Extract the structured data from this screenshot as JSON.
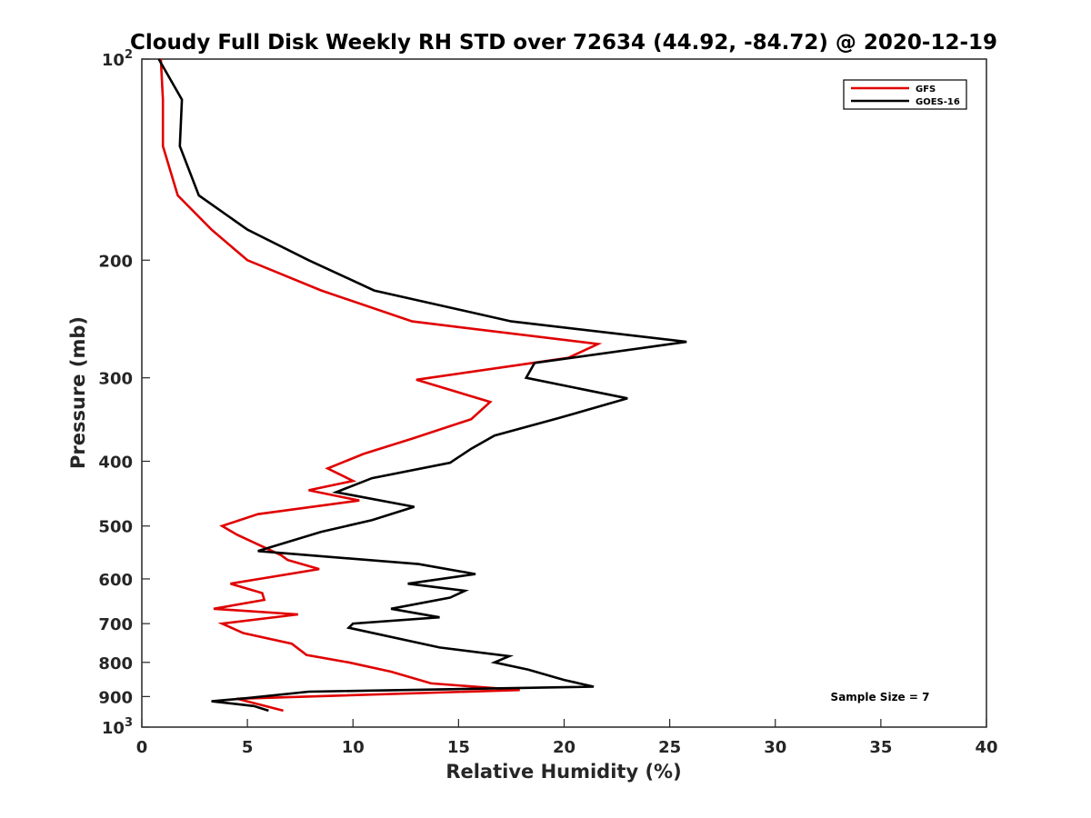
{
  "chart_data": {
    "type": "line",
    "title": "Cloudy Full Disk Weekly RH STD over 72634 (44.92, -84.72) @ 2020-12-19",
    "xlabel": "Relative Humidity (%)",
    "ylabel": "Pressure (mb)",
    "xlim": [
      0,
      40
    ],
    "ylim": [
      100,
      1000
    ],
    "y_scale": "log",
    "y_reversed": true,
    "grid": false,
    "legend_position": "top-right",
    "x_ticks": [
      "0",
      "5",
      "10",
      "15",
      "20",
      "25",
      "30",
      "35",
      "40"
    ],
    "y_ticks": [
      {
        "value": 100,
        "base": "10",
        "exp": "2"
      },
      {
        "value": 200,
        "label": "200"
      },
      {
        "value": 300,
        "label": "300"
      },
      {
        "value": 400,
        "label": "400"
      },
      {
        "value": 500,
        "label": "500"
      },
      {
        "value": 600,
        "label": "600"
      },
      {
        "value": 700,
        "label": "700"
      },
      {
        "value": 800,
        "label": "800"
      },
      {
        "value": 900,
        "label": "900"
      },
      {
        "value": 1000,
        "base": "10",
        "exp": "3"
      }
    ],
    "annotation": "Sample Size = 7",
    "series": [
      {
        "name": "GFS",
        "color": "#e00000",
        "points": [
          [
            0.9,
            100
          ],
          [
            1.0,
            115
          ],
          [
            1.0,
            135
          ],
          [
            1.7,
            160
          ],
          [
            3.3,
            180
          ],
          [
            5.0,
            200
          ],
          [
            8.5,
            222
          ],
          [
            12.8,
            247
          ],
          [
            21.6,
            267
          ],
          [
            20.2,
            280
          ],
          [
            13.0,
            302
          ],
          [
            16.5,
            326
          ],
          [
            15.6,
            346
          ],
          [
            12.8,
            370
          ],
          [
            10.5,
            390
          ],
          [
            8.8,
            410
          ],
          [
            10.0,
            428
          ],
          [
            7.9,
            442
          ],
          [
            10.3,
            458
          ],
          [
            5.5,
            480
          ],
          [
            3.8,
            500
          ],
          [
            4.5,
            515
          ],
          [
            6.6,
            553
          ],
          [
            6.9,
            562
          ],
          [
            8.4,
            580
          ],
          [
            4.2,
            610
          ],
          [
            5.7,
            630
          ],
          [
            5.8,
            645
          ],
          [
            3.4,
            665
          ],
          [
            7.4,
            678
          ],
          [
            3.8,
            700
          ],
          [
            4.8,
            723
          ],
          [
            7.1,
            750
          ],
          [
            7.8,
            780
          ],
          [
            9.8,
            800
          ],
          [
            11.8,
            826
          ],
          [
            13.7,
            860
          ],
          [
            17.9,
            880
          ],
          [
            4.5,
            907
          ],
          [
            6.7,
            945
          ]
        ]
      },
      {
        "name": "GOES-16",
        "color": "#000000",
        "points": [
          [
            0.8,
            100
          ],
          [
            1.9,
            115
          ],
          [
            1.8,
            135
          ],
          [
            2.7,
            160
          ],
          [
            5.0,
            180
          ],
          [
            7.9,
            200
          ],
          [
            11.0,
            222
          ],
          [
            17.5,
            247
          ],
          [
            25.8,
            265
          ],
          [
            18.6,
            285
          ],
          [
            18.2,
            300
          ],
          [
            23.0,
            322
          ],
          [
            19.7,
            345
          ],
          [
            16.7,
            366
          ],
          [
            15.6,
            383
          ],
          [
            14.6,
            402
          ],
          [
            10.9,
            424
          ],
          [
            9.2,
            445
          ],
          [
            12.9,
            468
          ],
          [
            10.9,
            490
          ],
          [
            8.5,
            510
          ],
          [
            5.5,
            545
          ],
          [
            13.1,
            570
          ],
          [
            15.8,
            590
          ],
          [
            12.6,
            610
          ],
          [
            15.3,
            625
          ],
          [
            14.6,
            640
          ],
          [
            11.8,
            665
          ],
          [
            14.1,
            685
          ],
          [
            10.0,
            700
          ],
          [
            9.8,
            710
          ],
          [
            14.1,
            760
          ],
          [
            17.4,
            783
          ],
          [
            16.7,
            800
          ],
          [
            18.3,
            820
          ],
          [
            20.0,
            850
          ],
          [
            21.4,
            870
          ],
          [
            7.9,
            885
          ],
          [
            5.0,
            905
          ],
          [
            3.3,
            915
          ],
          [
            5.3,
            930
          ],
          [
            6.0,
            945
          ]
        ]
      }
    ]
  }
}
